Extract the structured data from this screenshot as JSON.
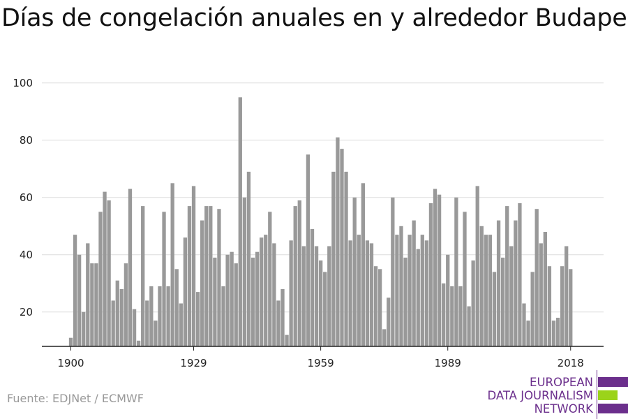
{
  "title": "Días de congelación anuales en y alrededor Budapest",
  "source": "Fuente: EDJNet / ECMWF",
  "logo": {
    "lines": [
      "EUROPEAN",
      "DATA JOURNALISM",
      "NETWORK"
    ],
    "colors": {
      "purple": "#6b2f8c",
      "green": "#9bd31a"
    }
  },
  "chart_data": {
    "type": "bar",
    "title": "Días de congelación anuales en y alrededor Budapest",
    "xlabel": "",
    "ylabel": "",
    "x_start": 1900,
    "x_end": 2018,
    "x_ticks": [
      1900,
      1929,
      1959,
      1989,
      2018
    ],
    "y_ticks": [
      20,
      40,
      60,
      80,
      100
    ],
    "ylim": [
      8,
      100
    ],
    "grid": true,
    "bar_color": "#999999",
    "values": [
      11,
      47,
      40,
      20,
      44,
      37,
      37,
      55,
      62,
      59,
      24,
      31,
      28,
      37,
      63,
      21,
      10,
      57,
      24,
      29,
      17,
      29,
      55,
      29,
      65,
      35,
      23,
      46,
      57,
      64,
      27,
      52,
      57,
      57,
      39,
      56,
      29,
      40,
      41,
      37,
      95,
      60,
      69,
      39,
      41,
      46,
      47,
      55,
      44,
      24,
      28,
      12,
      45,
      57,
      59,
      43,
      75,
      49,
      43,
      38,
      34,
      43,
      69,
      81,
      77,
      69,
      45,
      60,
      47,
      65,
      45,
      44,
      36,
      35,
      14,
      25,
      60,
      47,
      50,
      39,
      47,
      52,
      42,
      47,
      45,
      58,
      63,
      61,
      30,
      40,
      29,
      60,
      29,
      55,
      22,
      38,
      64,
      50,
      47,
      47,
      34,
      52,
      39,
      57,
      43,
      52,
      58,
      23,
      17,
      34,
      56,
      44,
      48,
      36,
      17,
      18,
      36,
      43,
      35
    ]
  }
}
